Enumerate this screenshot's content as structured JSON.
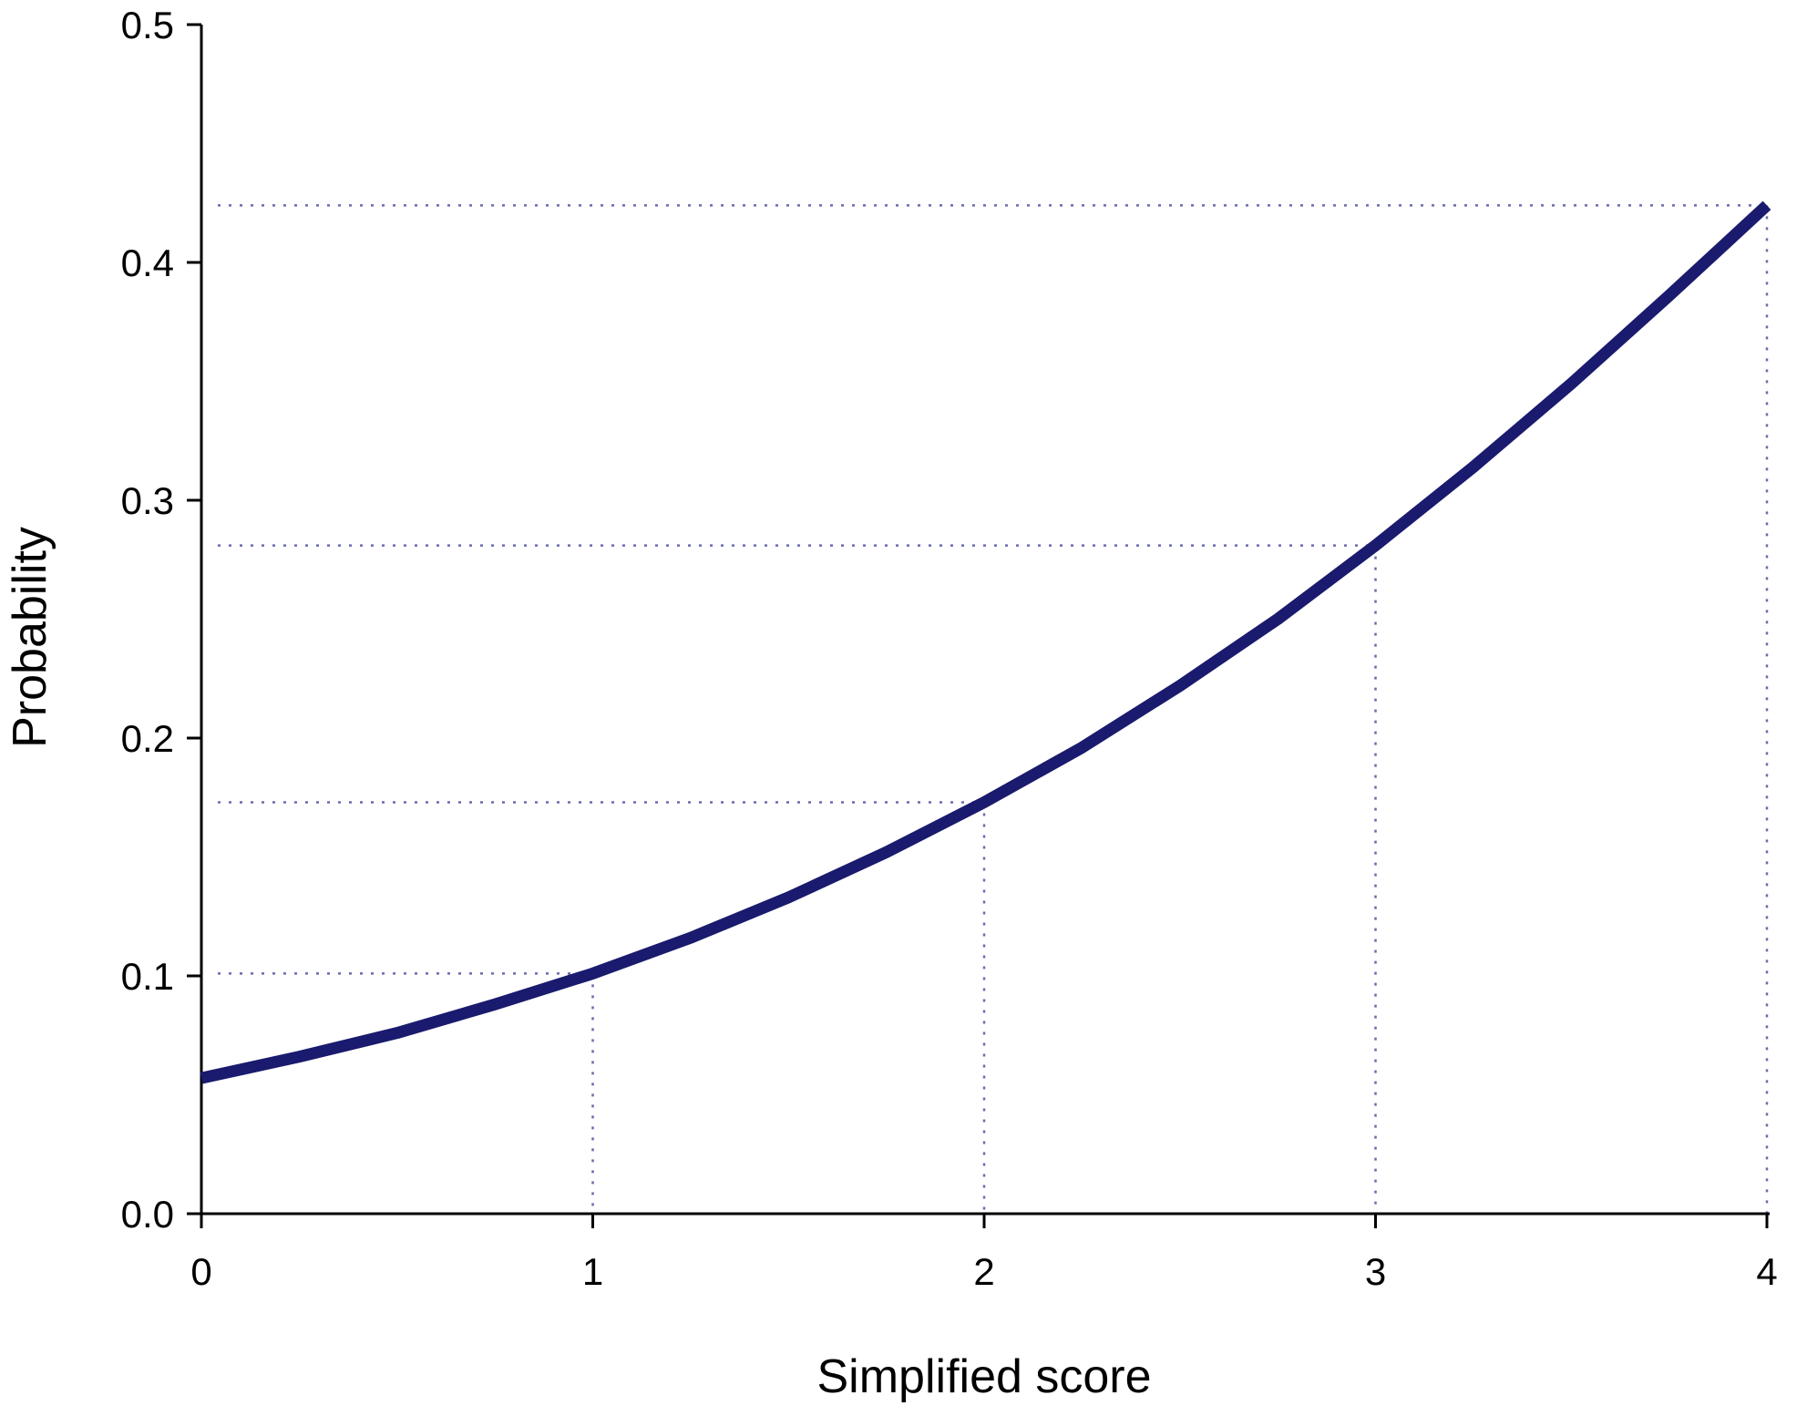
{
  "chart_data": {
    "type": "line",
    "xlabel": "Simplified score",
    "ylabel": "Probability",
    "xlim": [
      0,
      4
    ],
    "ylim": [
      0,
      0.5
    ],
    "x_ticks": [
      0,
      1,
      2,
      3,
      4
    ],
    "y_ticks": [
      0.0,
      0.1,
      0.2,
      0.3,
      0.4,
      0.5
    ],
    "x_tick_labels": [
      "0",
      "1",
      "2",
      "3",
      "4"
    ],
    "y_tick_labels": [
      "0.0",
      "0.1",
      "0.2",
      "0.3",
      "0.4",
      "0.5"
    ],
    "series": [
      {
        "x": [
          0,
          0.25,
          0.5,
          0.75,
          1,
          1.25,
          1.5,
          1.75,
          2,
          2.25,
          2.5,
          2.75,
          3,
          3.25,
          3.5,
          3.75,
          4
        ],
        "y": [
          0.057,
          0.066,
          0.076,
          0.088,
          0.101,
          0.116,
          0.133,
          0.152,
          0.173,
          0.196,
          0.222,
          0.25,
          0.281,
          0.314,
          0.349,
          0.386,
          0.424
        ],
        "color": "#1a1a6e"
      }
    ],
    "reference_points": [
      {
        "x": 1,
        "y": 0.101
      },
      {
        "x": 2,
        "y": 0.173
      },
      {
        "x": 3,
        "y": 0.281
      },
      {
        "x": 4,
        "y": 0.424
      }
    ],
    "reference_line_color": "#6a6ab0",
    "grid": false,
    "legend": "none"
  }
}
